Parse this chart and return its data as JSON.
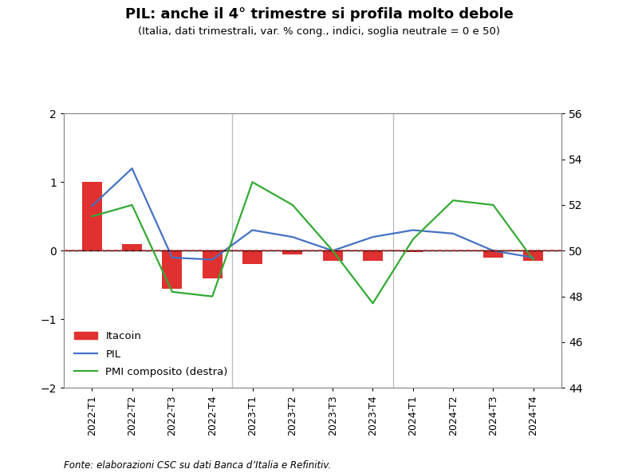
{
  "title": "PIL: anche il 4° trimestre si profila molto debole",
  "subtitle": "(Italia, dati trimestrali, var. % cong., indici, soglia neutrale = 0 e 50)",
  "footnote": "Fonte: elaborazioni CSC su dati Banca d’Italia e Refinitiv.",
  "categories": [
    "2022-T1",
    "2022-T2",
    "2022-T3",
    "2022-T4",
    "2023-T1",
    "2023-T2",
    "2023-T3",
    "2023-T4",
    "2024-T1",
    "2024-T2",
    "2024-T3",
    "2024-T4"
  ],
  "itacoin": [
    1.0,
    0.1,
    -0.55,
    -0.4,
    -0.2,
    -0.05,
    -0.15,
    -0.15,
    -0.02,
    0.0,
    -0.1,
    -0.15
  ],
  "pil": [
    0.65,
    1.2,
    -0.1,
    -0.13,
    0.3,
    0.2,
    0.0,
    0.2,
    0.3,
    0.25,
    0.0,
    -0.1
  ],
  "pmi": [
    51.5,
    52.0,
    48.2,
    48.0,
    53.0,
    52.0,
    50.0,
    47.7,
    50.5,
    52.2,
    52.0,
    49.6
  ],
  "ylim_left": [
    -2.0,
    2.0
  ],
  "ylim_right": [
    44,
    56
  ],
  "yticks_left": [
    -2.0,
    -1.0,
    0.0,
    1.0,
    2.0
  ],
  "yticks_right": [
    44,
    46,
    48,
    50,
    52,
    54,
    56
  ],
  "bar_color": "#e03030",
  "pil_color": "#4472c4",
  "pmi_color": "#33aa33",
  "dashed_line_color": "#cc3333",
  "vline_color": "#c0c0c0",
  "vlines_at": [
    3.5,
    7.5
  ],
  "background_color": "#ffffff",
  "bar_width": 0.5
}
